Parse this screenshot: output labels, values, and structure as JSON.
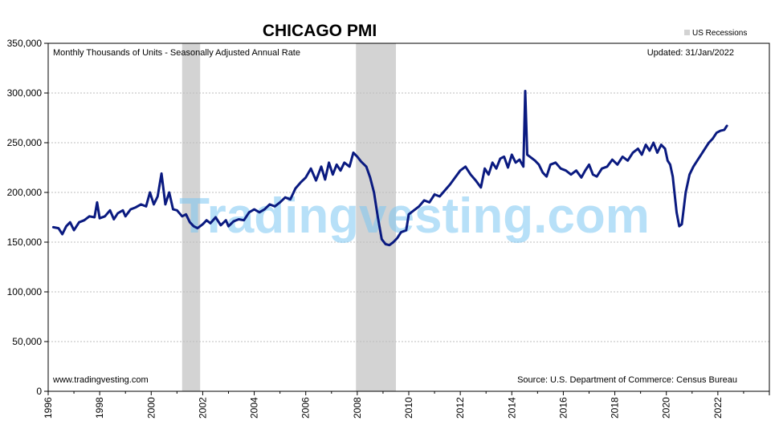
{
  "chart_data": {
    "type": "line",
    "title": "CHICAGO PMI",
    "subtitle": "Monthly Thousands of Units - Seasonally Adjusted Annual Rate",
    "updated": "Updated: 31/Jan/2022",
    "source": "Source: U.S. Department of Commerce: Census Bureau",
    "website": "www.tradingvesting.com",
    "watermark": "Tradingvesting.com",
    "legend": [
      {
        "label": "US Recessions",
        "color": "#d3d3d3"
      }
    ],
    "xlim": [
      1996,
      2024
    ],
    "ylim": [
      0,
      350000
    ],
    "y_ticks": [
      0,
      50000,
      100000,
      150000,
      200000,
      250000,
      300000,
      350000
    ],
    "y_tick_labels": [
      "0",
      "50,000",
      "100,000",
      "150,000",
      "200,000",
      "250,000",
      "300,000",
      "350,000"
    ],
    "x_ticks": [
      1996,
      1998,
      2000,
      2002,
      2004,
      2006,
      2008,
      2010,
      2012,
      2014,
      2016,
      2018,
      2020,
      2022
    ],
    "x_tick_labels": [
      "1996",
      "1998",
      "2000",
      "2002",
      "2004",
      "2006",
      "2008",
      "2010",
      "2012",
      "2014",
      "2016",
      "2018",
      "2020",
      "2022"
    ],
    "recessions": [
      {
        "start": 2001.2,
        "end": 2001.9
      },
      {
        "start": 2007.95,
        "end": 2009.5
      }
    ],
    "series": [
      {
        "name": "Chicago PMI",
        "color": "#0a1a80",
        "points": [
          [
            1996.2,
            165000
          ],
          [
            1996.4,
            164000
          ],
          [
            1996.55,
            158000
          ],
          [
            1996.7,
            166000
          ],
          [
            1996.85,
            170000
          ],
          [
            1997.0,
            162000
          ],
          [
            1997.2,
            170000
          ],
          [
            1997.4,
            172000
          ],
          [
            1997.6,
            176000
          ],
          [
            1997.8,
            175000
          ],
          [
            1997.9,
            190000
          ],
          [
            1998.0,
            174000
          ],
          [
            1998.2,
            176000
          ],
          [
            1998.4,
            182000
          ],
          [
            1998.55,
            173000
          ],
          [
            1998.7,
            179000
          ],
          [
            1998.9,
            182000
          ],
          [
            1999.0,
            176000
          ],
          [
            1999.2,
            183000
          ],
          [
            1999.4,
            185000
          ],
          [
            1999.6,
            188000
          ],
          [
            1999.8,
            186000
          ],
          [
            1999.95,
            200000
          ],
          [
            2000.1,
            188000
          ],
          [
            2000.25,
            196000
          ],
          [
            2000.4,
            219000
          ],
          [
            2000.55,
            188000
          ],
          [
            2000.7,
            200000
          ],
          [
            2000.85,
            183000
          ],
          [
            2001.0,
            182000
          ],
          [
            2001.2,
            176000
          ],
          [
            2001.35,
            178000
          ],
          [
            2001.5,
            170000
          ],
          [
            2001.65,
            166000
          ],
          [
            2001.8,
            164000
          ],
          [
            2002.0,
            168000
          ],
          [
            2002.15,
            172000
          ],
          [
            2002.3,
            169000
          ],
          [
            2002.5,
            175000
          ],
          [
            2002.7,
            167000
          ],
          [
            2002.9,
            172000
          ],
          [
            2003.0,
            166000
          ],
          [
            2003.2,
            171000
          ],
          [
            2003.4,
            173000
          ],
          [
            2003.6,
            172000
          ],
          [
            2003.8,
            180000
          ],
          [
            2004.0,
            183000
          ],
          [
            2004.2,
            180000
          ],
          [
            2004.4,
            183000
          ],
          [
            2004.6,
            188000
          ],
          [
            2004.8,
            186000
          ],
          [
            2005.0,
            190000
          ],
          [
            2005.2,
            195000
          ],
          [
            2005.4,
            193000
          ],
          [
            2005.6,
            204000
          ],
          [
            2005.8,
            210000
          ],
          [
            2006.0,
            215000
          ],
          [
            2006.2,
            224000
          ],
          [
            2006.4,
            212000
          ],
          [
            2006.6,
            226000
          ],
          [
            2006.75,
            213000
          ],
          [
            2006.9,
            230000
          ],
          [
            2007.05,
            218000
          ],
          [
            2007.2,
            228000
          ],
          [
            2007.35,
            222000
          ],
          [
            2007.5,
            230000
          ],
          [
            2007.7,
            226000
          ],
          [
            2007.85,
            240000
          ],
          [
            2008.0,
            236000
          ],
          [
            2008.15,
            231000
          ],
          [
            2008.35,
            226000
          ],
          [
            2008.5,
            215000
          ],
          [
            2008.65,
            200000
          ],
          [
            2008.8,
            175000
          ],
          [
            2008.95,
            153000
          ],
          [
            2009.1,
            148000
          ],
          [
            2009.25,
            147000
          ],
          [
            2009.4,
            150000
          ],
          [
            2009.55,
            154000
          ],
          [
            2009.7,
            160000
          ],
          [
            2009.9,
            162000
          ],
          [
            2010.0,
            178000
          ],
          [
            2010.2,
            182000
          ],
          [
            2010.4,
            186000
          ],
          [
            2010.6,
            192000
          ],
          [
            2010.8,
            190000
          ],
          [
            2011.0,
            198000
          ],
          [
            2011.2,
            196000
          ],
          [
            2011.4,
            202000
          ],
          [
            2011.6,
            208000
          ],
          [
            2011.8,
            215000
          ],
          [
            2012.0,
            222000
          ],
          [
            2012.2,
            226000
          ],
          [
            2012.4,
            218000
          ],
          [
            2012.6,
            212000
          ],
          [
            2012.8,
            205000
          ],
          [
            2012.95,
            224000
          ],
          [
            2013.1,
            218000
          ],
          [
            2013.25,
            230000
          ],
          [
            2013.4,
            224000
          ],
          [
            2013.55,
            234000
          ],
          [
            2013.7,
            236000
          ],
          [
            2013.85,
            225000
          ],
          [
            2014.0,
            238000
          ],
          [
            2014.15,
            230000
          ],
          [
            2014.3,
            233000
          ],
          [
            2014.45,
            226000
          ],
          [
            2014.52,
            302000
          ],
          [
            2014.6,
            238000
          ],
          [
            2014.75,
            235000
          ],
          [
            2014.9,
            232000
          ],
          [
            2015.05,
            228000
          ],
          [
            2015.2,
            220000
          ],
          [
            2015.35,
            216000
          ],
          [
            2015.5,
            228000
          ],
          [
            2015.7,
            230000
          ],
          [
            2015.9,
            224000
          ],
          [
            2016.1,
            222000
          ],
          [
            2016.3,
            218000
          ],
          [
            2016.5,
            222000
          ],
          [
            2016.7,
            215000
          ],
          [
            2016.85,
            222000
          ],
          [
            2017.0,
            228000
          ],
          [
            2017.15,
            218000
          ],
          [
            2017.3,
            216000
          ],
          [
            2017.5,
            224000
          ],
          [
            2017.7,
            226000
          ],
          [
            2017.9,
            233000
          ],
          [
            2018.1,
            228000
          ],
          [
            2018.3,
            236000
          ],
          [
            2018.5,
            232000
          ],
          [
            2018.7,
            240000
          ],
          [
            2018.9,
            244000
          ],
          [
            2019.05,
            238000
          ],
          [
            2019.2,
            248000
          ],
          [
            2019.35,
            242000
          ],
          [
            2019.5,
            250000
          ],
          [
            2019.65,
            240000
          ],
          [
            2019.8,
            248000
          ],
          [
            2019.95,
            244000
          ],
          [
            2020.05,
            232000
          ],
          [
            2020.15,
            228000
          ],
          [
            2020.25,
            216000
          ],
          [
            2020.4,
            180000
          ],
          [
            2020.5,
            166000
          ],
          [
            2020.6,
            168000
          ],
          [
            2020.75,
            200000
          ],
          [
            2020.9,
            218000
          ],
          [
            2021.05,
            226000
          ],
          [
            2021.2,
            232000
          ],
          [
            2021.35,
            238000
          ],
          [
            2021.5,
            244000
          ],
          [
            2021.65,
            250000
          ],
          [
            2021.8,
            254000
          ],
          [
            2021.95,
            260000
          ],
          [
            2022.1,
            262000
          ],
          [
            2022.25,
            263000
          ],
          [
            2022.35,
            267000
          ]
        ]
      }
    ]
  }
}
